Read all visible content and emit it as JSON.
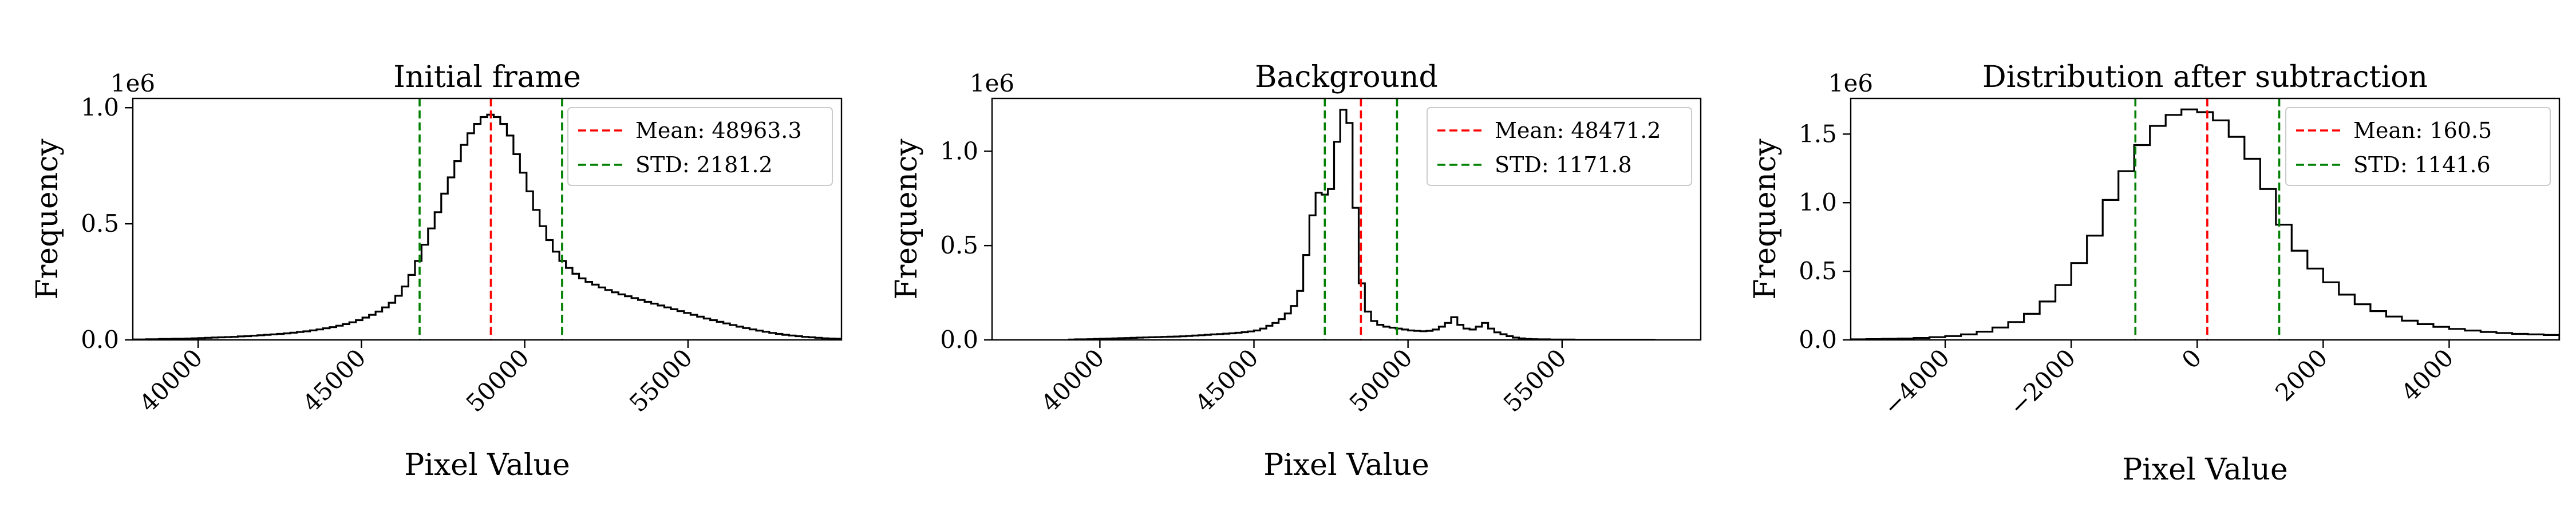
{
  "chart_data": [
    {
      "type": "histogram",
      "title": "Initial frame",
      "xlabel": "Pixel Value",
      "ylabel": "Frequency",
      "y_multiplier": "1e6",
      "xlim": [
        38000,
        59700
      ],
      "ylim": [
        0,
        1.04
      ],
      "xticks": [
        40000,
        45000,
        50000,
        55000
      ],
      "yticks": [
        0.0,
        0.5,
        1.0
      ],
      "ytick_labels": [
        "0.0",
        "0.5",
        "1.0"
      ],
      "mean": 48963.3,
      "std": 2181.2,
      "std_lines": [
        46782.1,
        51144.5
      ],
      "legend": {
        "placement": "top-right",
        "entries": [
          {
            "label": "Mean: 48963.3",
            "color": "#ff0000",
            "style": "dashed"
          },
          {
            "label": "STD: 2181.2",
            "color": "#008000",
            "style": "dashed"
          }
        ]
      },
      "bin_edges": [
        38000,
        59700
      ],
      "bin_count": 108,
      "bin_values": [
        0.002,
        0.002,
        0.003,
        0.003,
        0.004,
        0.004,
        0.005,
        0.005,
        0.006,
        0.007,
        0.008,
        0.009,
        0.01,
        0.011,
        0.012,
        0.013,
        0.015,
        0.016,
        0.018,
        0.02,
        0.022,
        0.024,
        0.026,
        0.028,
        0.031,
        0.034,
        0.037,
        0.041,
        0.045,
        0.05,
        0.055,
        0.061,
        0.068,
        0.076,
        0.085,
        0.096,
        0.108,
        0.122,
        0.14,
        0.16,
        0.19,
        0.23,
        0.28,
        0.34,
        0.41,
        0.48,
        0.55,
        0.63,
        0.7,
        0.77,
        0.84,
        0.89,
        0.93,
        0.96,
        0.97,
        0.96,
        0.93,
        0.88,
        0.8,
        0.72,
        0.64,
        0.56,
        0.49,
        0.43,
        0.38,
        0.34,
        0.31,
        0.285,
        0.265,
        0.25,
        0.238,
        0.226,
        0.215,
        0.205,
        0.196,
        0.188,
        0.18,
        0.172,
        0.164,
        0.156,
        0.148,
        0.14,
        0.132,
        0.124,
        0.116,
        0.108,
        0.1,
        0.092,
        0.085,
        0.078,
        0.071,
        0.064,
        0.057,
        0.051,
        0.045,
        0.04,
        0.035,
        0.03,
        0.026,
        0.022,
        0.019,
        0.016,
        0.013,
        0.011,
        0.009,
        0.007,
        0.006,
        0.005
      ]
    },
    {
      "type": "histogram",
      "title": "Background",
      "xlabel": "Pixel Value",
      "ylabel": "Frequency",
      "y_multiplier": "1e6",
      "xlim": [
        36500,
        59500
      ],
      "ylim": [
        0,
        1.28
      ],
      "xticks": [
        40000,
        45000,
        50000,
        55000
      ],
      "yticks": [
        0.0,
        0.5,
        1.0
      ],
      "ytick_labels": [
        "0.0",
        "0.5",
        "1.0"
      ],
      "mean": 48471.2,
      "std": 1171.8,
      "std_lines": [
        47299.4,
        49643.0
      ],
      "legend": {
        "placement": "top-right",
        "entries": [
          {
            "label": "Mean: 48471.2",
            "color": "#ff0000",
            "style": "dashed"
          },
          {
            "label": "STD: 1171.8",
            "color": "#008000",
            "style": "dashed"
          }
        ]
      },
      "bin_edges": [
        39000,
        58000
      ],
      "bin_count": 95,
      "bin_values": [
        0.002,
        0.003,
        0.003,
        0.004,
        0.005,
        0.006,
        0.007,
        0.008,
        0.009,
        0.01,
        0.011,
        0.012,
        0.013,
        0.014,
        0.015,
        0.016,
        0.017,
        0.018,
        0.019,
        0.021,
        0.023,
        0.025,
        0.027,
        0.029,
        0.031,
        0.033,
        0.035,
        0.038,
        0.041,
        0.045,
        0.05,
        0.06,
        0.075,
        0.09,
        0.11,
        0.14,
        0.18,
        0.26,
        0.45,
        0.66,
        0.78,
        0.77,
        0.8,
        1.05,
        1.22,
        1.15,
        0.7,
        0.3,
        0.15,
        0.1,
        0.08,
        0.07,
        0.065,
        0.06,
        0.055,
        0.05,
        0.048,
        0.046,
        0.048,
        0.055,
        0.07,
        0.09,
        0.12,
        0.08,
        0.06,
        0.055,
        0.07,
        0.09,
        0.06,
        0.04,
        0.03,
        0.02,
        0.012,
        0.008,
        0.005,
        0.004,
        0.003,
        0.003,
        0.002,
        0.002,
        0.002,
        0.002,
        0.001,
        0.001,
        0.001,
        0.001,
        0.001,
        0.001,
        0.001,
        0.001,
        0.001,
        0.001,
        0.001,
        0.001,
        0.001
      ]
    },
    {
      "type": "histogram",
      "title": "Distribution after subtraction",
      "xlabel": "Pixel Value",
      "ylabel": "Frequency",
      "y_multiplier": "1e6",
      "xlim": [
        -5500,
        5750
      ],
      "ylim": [
        0,
        1.76
      ],
      "xticks": [
        -4000,
        -2000,
        0,
        2000,
        4000
      ],
      "yticks": [
        0.0,
        0.5,
        1.0,
        1.5
      ],
      "ytick_labels": [
        "0.0",
        "0.5",
        "1.0",
        "1.5"
      ],
      "mean": 160.5,
      "std": 1141.6,
      "std_lines": [
        -981.1,
        1302.1
      ],
      "legend": {
        "placement": "top-right",
        "entries": [
          {
            "label": "Mean: 160.5",
            "color": "#ff0000",
            "style": "dashed"
          },
          {
            "label": "STD: 1141.6",
            "color": "#008000",
            "style": "dashed"
          }
        ]
      },
      "bin_edges": [
        -5500,
        5750
      ],
      "bin_count": 45,
      "bin_values": [
        0.004,
        0.006,
        0.008,
        0.01,
        0.014,
        0.02,
        0.028,
        0.04,
        0.06,
        0.09,
        0.13,
        0.19,
        0.28,
        0.4,
        0.56,
        0.76,
        1.02,
        1.23,
        1.42,
        1.56,
        1.64,
        1.68,
        1.66,
        1.6,
        1.48,
        1.32,
        1.1,
        0.84,
        0.65,
        0.52,
        0.42,
        0.33,
        0.26,
        0.21,
        0.17,
        0.14,
        0.115,
        0.095,
        0.08,
        0.068,
        0.058,
        0.05,
        0.044,
        0.04,
        0.036
      ]
    }
  ]
}
